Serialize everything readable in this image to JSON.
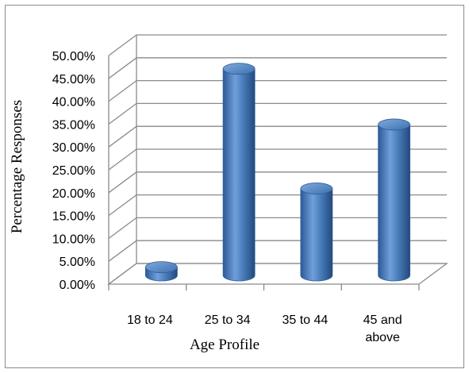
{
  "chart_data": {
    "type": "bar",
    "style": "3d-cylinder",
    "categories": [
      [
        "18 to 24"
      ],
      [
        "25 to 34"
      ],
      [
        "35 to 44"
      ],
      [
        "45 and",
        "above"
      ]
    ],
    "values": [
      1.8,
      45.2,
      19.0,
      33.0
    ],
    "title": "",
    "xlabel": "Age Profile",
    "ylabel": "Percentage Responses",
    "ylim": [
      0,
      50
    ],
    "yticks": [
      0,
      5,
      10,
      15,
      20,
      25,
      30,
      35,
      40,
      45,
      50
    ],
    "ytick_labels": [
      "0.00%",
      "5.00%",
      "10.00%",
      "15.00%",
      "20.00%",
      "25.00%",
      "30.00%",
      "35.00%",
      "40.00%",
      "45.00%",
      "50.00%"
    ],
    "grid": true,
    "legend": "none",
    "bar_color": "#4a7ebb"
  }
}
